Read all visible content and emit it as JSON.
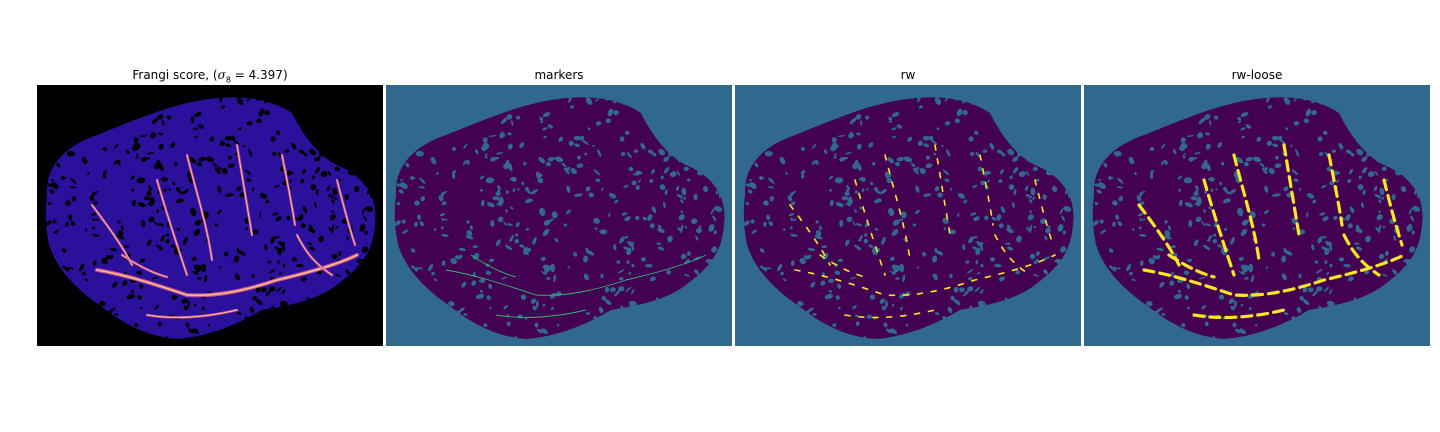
{
  "panels": [
    {
      "title_prefix": "Frangi score, (",
      "title_math": "σ",
      "title_sub": "8",
      "title_suffix": " = 4.397)",
      "colormap": "magma",
      "background": "#000000",
      "blob_color": "#2a109a",
      "vessel_color": "#c44ea0",
      "vessel_highlight": "#fbc27c"
    },
    {
      "title": "markers",
      "colormap": "viridis",
      "background": "#31688e",
      "blob_color": "#440154",
      "marker_color": "#35b779"
    },
    {
      "title": "rw",
      "colormap": "viridis",
      "background": "#31688e",
      "blob_color": "#440154",
      "segment_color": "#fde725"
    },
    {
      "title": "rw-loose",
      "colormap": "viridis",
      "background": "#31688e",
      "blob_color": "#440154",
      "segment_color": "#fde725"
    }
  ]
}
